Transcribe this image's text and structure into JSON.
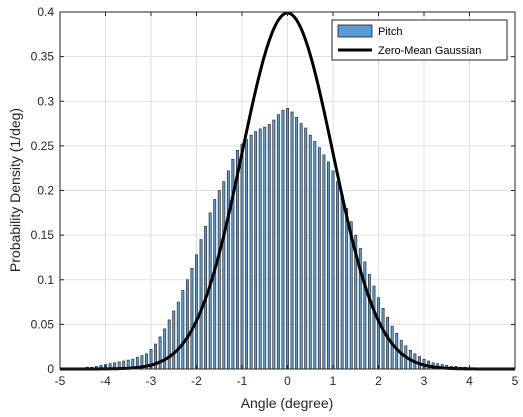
{
  "chart_data": {
    "type": "bar",
    "title": "",
    "xlabel": "Angle (degree)",
    "ylabel": "Probability Density (1/deg)",
    "xlim": [
      -5,
      5
    ],
    "ylim": [
      0,
      0.4
    ],
    "xticks": [
      -5,
      -4,
      -3,
      -2,
      -1,
      0,
      1,
      2,
      3,
      4,
      5
    ],
    "yticks": [
      0,
      0.05,
      0.1,
      0.15,
      0.2,
      0.25,
      0.3,
      0.35,
      0.4
    ],
    "xtick_labels": [
      "-5",
      "-4",
      "-3",
      "-2",
      "-1",
      "0",
      "1",
      "2",
      "3",
      "4",
      "5"
    ],
    "ytick_labels": [
      "0",
      "0.05",
      "0.1",
      "0.15",
      "0.2",
      "0.25",
      "0.3",
      "0.35",
      "0.4"
    ],
    "grid": true,
    "legend_position": "top-right",
    "series": [
      {
        "name": "Pitch",
        "type": "histogram",
        "color": "#5b9bd5",
        "bin_width": 0.05,
        "bin_centers": [
          -4.5,
          -4.4,
          -4.3,
          -4.2,
          -4.1,
          -4.0,
          -3.9,
          -3.8,
          -3.7,
          -3.6,
          -3.5,
          -3.4,
          -3.3,
          -3.2,
          -3.1,
          -3.0,
          -2.9,
          -2.8,
          -2.7,
          -2.6,
          -2.5,
          -2.4,
          -2.3,
          -2.2,
          -2.1,
          -2.0,
          -1.9,
          -1.8,
          -1.7,
          -1.6,
          -1.5,
          -1.4,
          -1.3,
          -1.2,
          -1.1,
          -1.0,
          -0.9,
          -0.8,
          -0.7,
          -0.6,
          -0.5,
          -0.4,
          -0.3,
          -0.2,
          -0.1,
          0.0,
          0.1,
          0.2,
          0.3,
          0.4,
          0.5,
          0.6,
          0.7,
          0.8,
          0.9,
          1.0,
          1.1,
          1.2,
          1.3,
          1.4,
          1.5,
          1.6,
          1.7,
          1.8,
          1.9,
          2.0,
          2.1,
          2.2,
          2.3,
          2.4,
          2.5,
          2.6,
          2.7,
          2.8,
          2.9,
          3.0,
          3.1,
          3.2,
          3.3,
          3.4,
          3.5,
          3.6,
          3.7,
          3.8,
          3.9,
          4.0,
          4.1,
          4.2,
          4.3,
          4.4,
          4.5
        ],
        "values": [
          0.001,
          0.002,
          0.002,
          0.003,
          0.004,
          0.005,
          0.006,
          0.007,
          0.008,
          0.009,
          0.01,
          0.011,
          0.013,
          0.015,
          0.017,
          0.022,
          0.028,
          0.036,
          0.045,
          0.055,
          0.065,
          0.075,
          0.088,
          0.1,
          0.113,
          0.128,
          0.145,
          0.16,
          0.175,
          0.19,
          0.2,
          0.21,
          0.222,
          0.235,
          0.245,
          0.252,
          0.257,
          0.262,
          0.266,
          0.269,
          0.271,
          0.274,
          0.279,
          0.285,
          0.29,
          0.292,
          0.288,
          0.282,
          0.275,
          0.27,
          0.262,
          0.255,
          0.248,
          0.24,
          0.232,
          0.222,
          0.21,
          0.196,
          0.18,
          0.165,
          0.15,
          0.135,
          0.12,
          0.106,
          0.093,
          0.08,
          0.068,
          0.058,
          0.048,
          0.04,
          0.032,
          0.026,
          0.021,
          0.017,
          0.014,
          0.011,
          0.009,
          0.007,
          0.006,
          0.005,
          0.004,
          0.003,
          0.003,
          0.002,
          0.002,
          0.001,
          0.001,
          0.001,
          0.001,
          0.0,
          0.0
        ]
      },
      {
        "name": "Zero-Mean Gaussian",
        "type": "line",
        "color": "#000000",
        "mean": 0,
        "std": 1,
        "x": [
          -5.0,
          -4.0,
          -3.5,
          -3.0,
          -2.5,
          -2.0,
          -1.75,
          -1.5,
          -1.25,
          -1.0,
          -0.75,
          -0.5,
          -0.25,
          0.0,
          0.25,
          0.5,
          0.75,
          1.0,
          1.25,
          1.5,
          1.75,
          2.0,
          2.5,
          3.0,
          3.5,
          4.0,
          5.0
        ],
        "y": [
          0.0,
          0.0001,
          0.0009,
          0.0044,
          0.0175,
          0.054,
          0.0863,
          0.1295,
          0.1826,
          0.242,
          0.3011,
          0.3521,
          0.3867,
          0.3989,
          0.3867,
          0.3521,
          0.3011,
          0.242,
          0.1826,
          0.1295,
          0.0863,
          0.054,
          0.0175,
          0.0044,
          0.0009,
          0.0001,
          0.0
        ]
      }
    ]
  }
}
